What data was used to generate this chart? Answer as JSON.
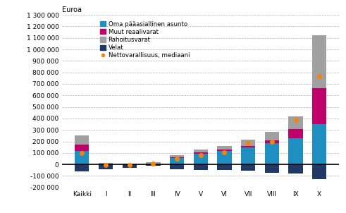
{
  "categories": [
    "Kaikki",
    "I",
    "II",
    "III",
    "IV",
    "V",
    "VI",
    "VII",
    "VIII",
    "IX",
    "X"
  ],
  "oma_asunto": [
    120000,
    0,
    0,
    0,
    55000,
    95000,
    120000,
    145000,
    185000,
    230000,
    350000
  ],
  "muut_reaalivarat": [
    50000,
    0,
    0,
    0,
    5000,
    8000,
    10000,
    18000,
    25000,
    75000,
    315000
  ],
  "rahoitusvarat": [
    85000,
    12000,
    10000,
    18000,
    18000,
    27000,
    28000,
    55000,
    70000,
    110000,
    455000
  ],
  "velat": [
    -60000,
    -45000,
    -30000,
    -12000,
    -40000,
    -50000,
    -50000,
    -55000,
    -70000,
    -80000,
    -130000
  ],
  "mediaani": [
    100000,
    -8000,
    -8000,
    5000,
    48000,
    78000,
    105000,
    185000,
    195000,
    385000,
    765000
  ],
  "colors": {
    "oma_asunto": "#1f8fc1",
    "muut_reaalivarat": "#c0006a",
    "rahoitusvarat": "#a0a0a0",
    "velat": "#1f3864",
    "mediaani": "#f5820a"
  },
  "euroa_label": "Euroa",
  "ylim": [
    -200000,
    1300000
  ],
  "yticks": [
    -200000,
    -100000,
    0,
    100000,
    200000,
    300000,
    400000,
    500000,
    600000,
    700000,
    800000,
    900000,
    1000000,
    1100000,
    1200000,
    1300000
  ],
  "legend_labels": [
    "Oma pääasiallinen asunto",
    "Muut reaalivarat",
    "Rahoitusvarat",
    "Velat",
    "Nettovarallisuus, mediaani"
  ],
  "background_color": "#ffffff",
  "grid_color": "#b0b0b0"
}
